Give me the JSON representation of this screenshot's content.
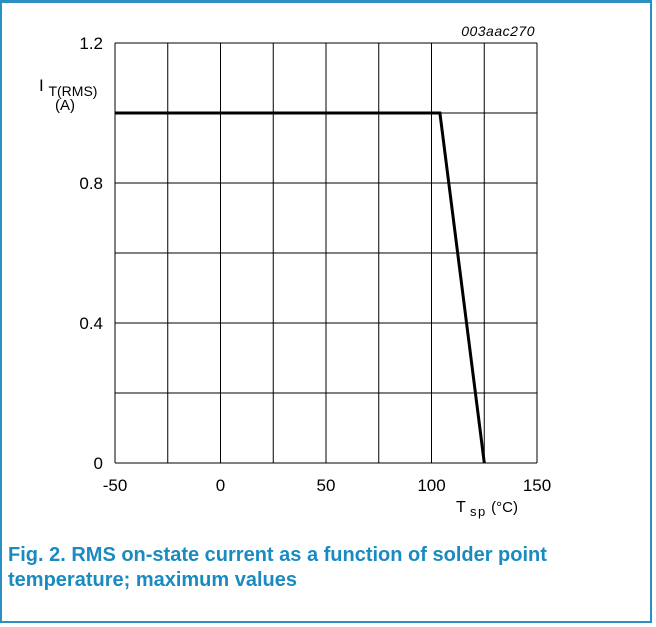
{
  "colors": {
    "frame": "#2b8fc2",
    "caption": "#1a8bc0",
    "grid": "#000000",
    "curve": "#000000"
  },
  "figure_id": "003aac270",
  "caption": "Fig. 2. RMS on-state current as a function of solder point temperature; maximum values",
  "chart_data": {
    "type": "line",
    "id_label": "003aac270",
    "ylabel": {
      "symbol": "I",
      "subscript": "T(RMS)",
      "unit": "(A)"
    },
    "xlabel": {
      "symbol": "T",
      "subscript": "sp",
      "unit": "(°C)"
    },
    "xlim": [
      -50,
      150
    ],
    "ylim": [
      0,
      1.2
    ],
    "x_ticks": [
      -50,
      0,
      50,
      100,
      150
    ],
    "x_tick_labels": [
      "-50",
      "0",
      "50",
      "100",
      "150"
    ],
    "y_ticks": [
      0,
      0.4,
      0.8,
      1.2
    ],
    "y_tick_labels": [
      "0",
      "0.4",
      "0.8",
      "1.2"
    ],
    "x_grid": [
      -50,
      -25,
      0,
      25,
      50,
      75,
      100,
      125,
      150
    ],
    "y_grid": [
      0,
      0.2,
      0.4,
      0.6,
      0.8,
      1.0,
      1.2
    ],
    "grid": true,
    "series": [
      {
        "x": [
          -50,
          104,
          125
        ],
        "y": [
          1.0,
          1.0,
          0
        ]
      }
    ]
  }
}
